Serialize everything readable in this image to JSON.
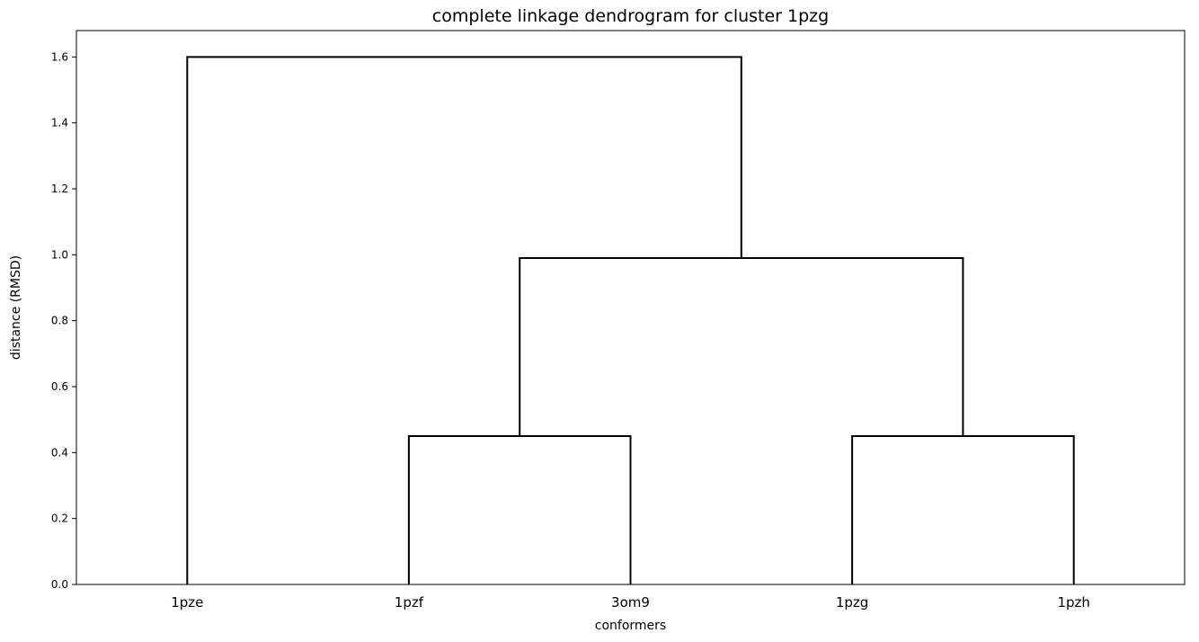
{
  "chart_data": {
    "type": "dendrogram",
    "title": "complete linkage dendrogram for cluster 1pzg",
    "xlabel": "conformers",
    "ylabel": "distance (RMSD)",
    "leaves": [
      "1pze",
      "1pzf",
      "3om9",
      "1pzg",
      "1pzh"
    ],
    "yticks": [
      "0.0",
      "0.2",
      "0.4",
      "0.6",
      "0.8",
      "1.0",
      "1.2",
      "1.4",
      "1.6"
    ],
    "ylim": [
      0,
      1.68
    ],
    "grid": false,
    "merges": [
      {
        "left": "1pzf",
        "right": "3om9",
        "distance": 0.45
      },
      {
        "left": "1pzg",
        "right": "1pzh",
        "distance": 0.45
      },
      {
        "left": "1pzf+3om9",
        "right": "1pzg+1pzh",
        "distance": 0.99
      },
      {
        "left": "1pze",
        "right": "1pzf+3om9+1pzg+1pzh",
        "distance": 1.6
      }
    ],
    "line_color": "#000000"
  }
}
